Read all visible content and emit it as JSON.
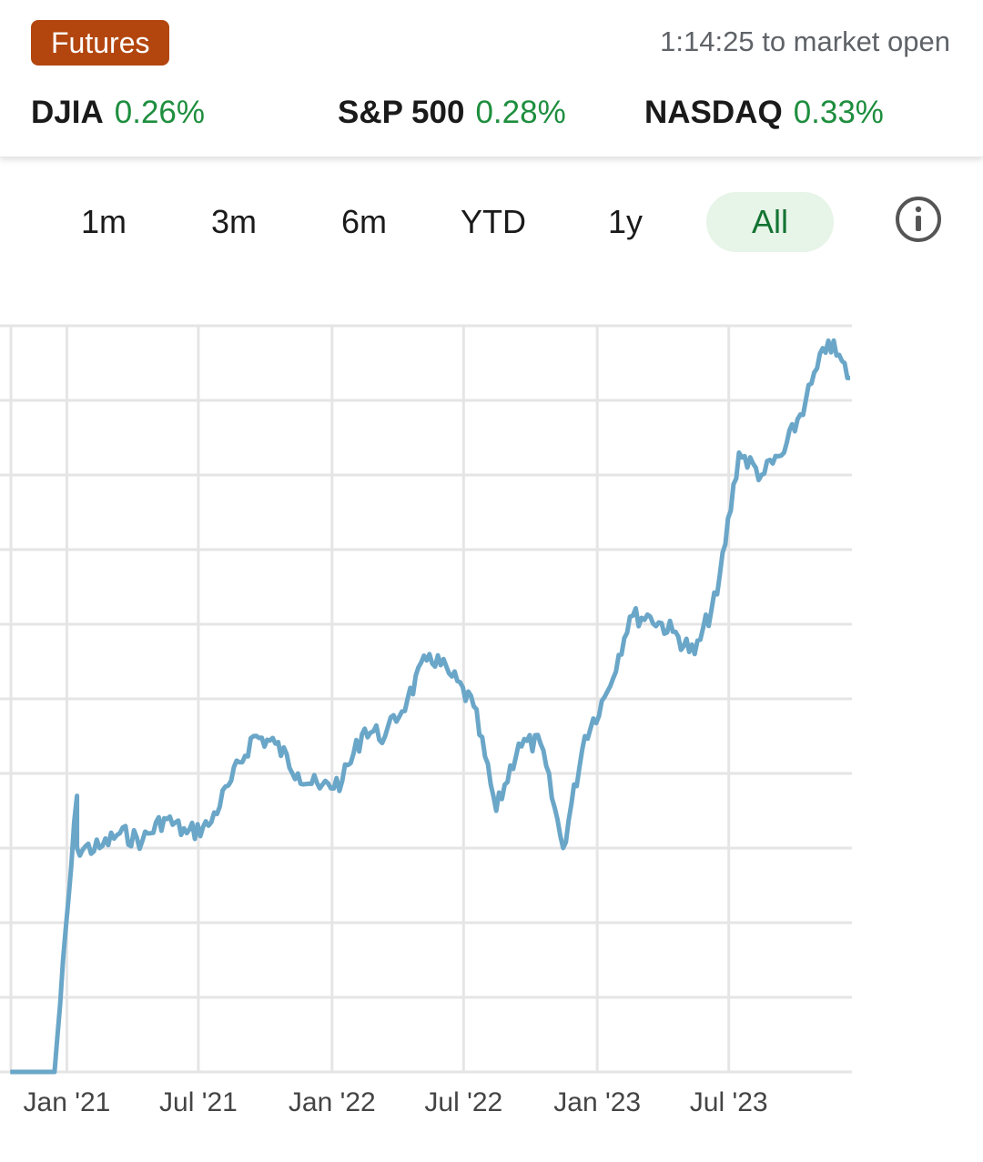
{
  "header": {
    "badge": "Futures",
    "countdown": "1:14:25 to market open",
    "indices": [
      {
        "name": "DJIA",
        "change": "0.26%"
      },
      {
        "name": "S&P 500",
        "change": "0.28%"
      },
      {
        "name": "NASDAQ",
        "change": "0.33%"
      }
    ]
  },
  "ranges": {
    "items": [
      "1m",
      "3m",
      "6m",
      "YTD",
      "1y",
      "All"
    ],
    "selected": "All"
  },
  "colors": {
    "badge": "#b3460f",
    "positive": "#1e8e3e",
    "line": "#6aa6c8",
    "selected_pill": "#e7f4e8"
  },
  "icons": {
    "info": "info-circle-icon"
  },
  "chart_data": {
    "type": "line",
    "title": "",
    "xlabel": "",
    "ylabel": "",
    "x_tick_labels": [
      "Jan '21",
      "Jul '21",
      "Jan '22",
      "Jul '22",
      "Jan '23",
      "Jul '23"
    ],
    "x_ticks": [
      "2021-01",
      "2021-07",
      "2022-01",
      "2022-07",
      "2023-01",
      "2023-07"
    ],
    "ylim": [
      0,
      10
    ],
    "grid": true,
    "series": [
      {
        "x": [
          "2020-10",
          "2020-12",
          "2021-01",
          "2021-01",
          "2021-02",
          "2021-03",
          "2021-04",
          "2021-05",
          "2021-06",
          "2021-07",
          "2021-08",
          "2021-09",
          "2021-10",
          "2021-11",
          "2021-12",
          "2022-01",
          "2022-02",
          "2022-03",
          "2022-04",
          "2022-05",
          "2022-06",
          "2022-07",
          "2022-08",
          "2022-09",
          "2022-10",
          "2022-11",
          "2022-12",
          "2023-01",
          "2023-02",
          "2023-03",
          "2023-04",
          "2023-05",
          "2023-06",
          "2023-07",
          "2023-08",
          "2023-09",
          "2023-10",
          "2023-11",
          "2023-12"
        ],
        "y": [
          0,
          0,
          3.7,
          3.0,
          3.0,
          3.2,
          3.1,
          3.4,
          3.2,
          3.3,
          3.9,
          4.5,
          4.4,
          4.0,
          3.8,
          3.9,
          4.6,
          4.5,
          5.0,
          5.6,
          5.3,
          4.9,
          3.5,
          4.4,
          4.4,
          3.0,
          4.5,
          5.1,
          6.1,
          6.1,
          5.9,
          5.6,
          6.4,
          8.3,
          8.0,
          8.3,
          9.0,
          9.8,
          9.3
        ]
      }
    ]
  }
}
